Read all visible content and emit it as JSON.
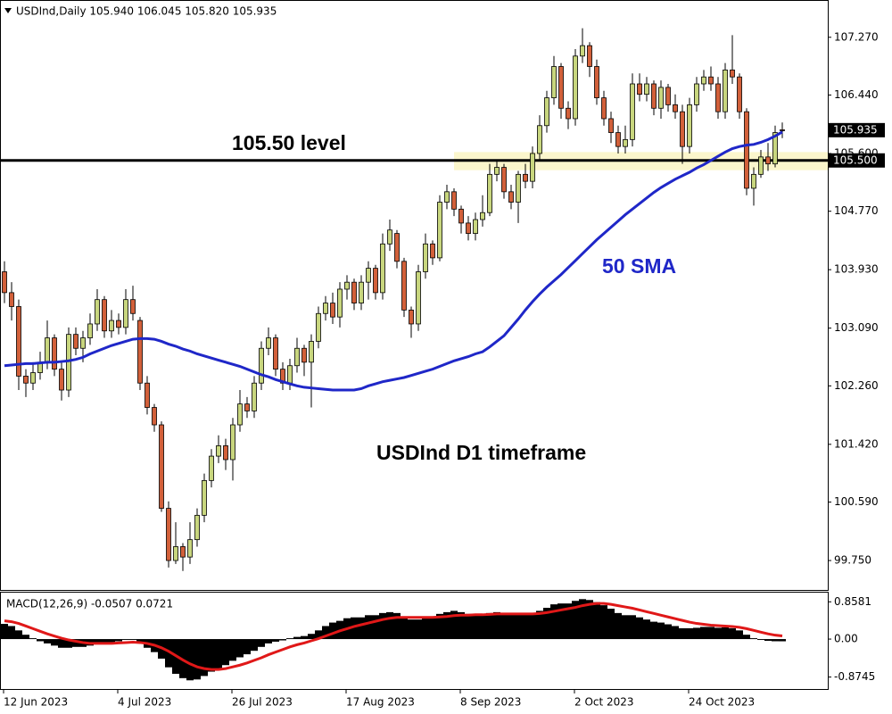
{
  "chart_data": [
    {
      "type": "candlestick",
      "header": "USDInd,Daily 105.940 106.045 105.820 105.935",
      "categories": [
        "12 Jun 2023",
        null,
        null,
        null,
        null,
        null,
        null,
        null,
        null,
        null,
        null,
        null,
        null,
        null,
        null,
        null,
        "4 Jul 2023",
        null,
        null,
        null,
        null,
        null,
        null,
        null,
        null,
        null,
        null,
        null,
        null,
        null,
        null,
        null,
        "26 Jul 2023",
        null,
        null,
        null,
        null,
        null,
        null,
        null,
        null,
        null,
        null,
        null,
        null,
        null,
        null,
        null,
        "17 Aug 2023",
        null,
        null,
        null,
        null,
        null,
        null,
        null,
        null,
        null,
        null,
        null,
        null,
        null,
        null,
        null,
        "8 Sep 2023",
        null,
        null,
        null,
        null,
        null,
        null,
        null,
        null,
        null,
        null,
        null,
        null,
        null,
        null,
        null,
        "2 Oct 2023",
        null,
        null,
        null,
        null,
        null,
        null,
        null,
        null,
        null,
        null,
        null,
        null,
        null,
        null,
        null,
        "24 Oct 2023",
        null,
        null,
        null,
        null,
        null,
        null,
        null,
        null,
        null,
        null,
        null,
        null,
        null
      ],
      "open": [
        103.9,
        103.6,
        103.4,
        102.4,
        102.3,
        102.45,
        102.6,
        102.95,
        102.5,
        102.2,
        103.0,
        102.8,
        102.95,
        103.15,
        103.5,
        103.05,
        103.2,
        103.1,
        103.5,
        103.2,
        102.3,
        101.95,
        101.7,
        100.5,
        99.75,
        99.95,
        99.8,
        100.05,
        100.4,
        100.9,
        101.25,
        101.4,
        101.2,
        101.7,
        102.0,
        101.9,
        102.3,
        102.8,
        102.95,
        102.5,
        102.3,
        102.55,
        102.8,
        102.6,
        102.9,
        103.3,
        103.45,
        103.25,
        103.65,
        103.75,
        103.45,
        103.75,
        103.95,
        103.6,
        104.3,
        104.45,
        104.05,
        103.35,
        103.15,
        103.9,
        104.3,
        104.1,
        104.9,
        105.05,
        104.8,
        104.6,
        104.45,
        104.65,
        104.75,
        105.3,
        105.4,
        105.05,
        104.9,
        105.3,
        105.2,
        105.6,
        106.0,
        106.4,
        106.85,
        106.25,
        106.1,
        107.0,
        107.15,
        106.85,
        106.4,
        106.1,
        105.9,
        105.7,
        105.8,
        106.6,
        106.45,
        106.6,
        106.25,
        106.55,
        106.3,
        106.2,
        105.7,
        106.3,
        106.6,
        106.7,
        106.6,
        106.2,
        106.8,
        106.7,
        106.2,
        105.1,
        105.3,
        105.55,
        105.45,
        105.94
      ],
      "high": [
        104.05,
        103.75,
        103.5,
        102.5,
        102.6,
        102.75,
        103.2,
        103.0,
        102.6,
        103.1,
        103.1,
        103.05,
        103.3,
        103.65,
        103.55,
        103.35,
        103.3,
        103.65,
        103.7,
        103.25,
        102.4,
        102.0,
        101.75,
        100.6,
        100.3,
        100.0,
        100.3,
        100.5,
        101.0,
        101.35,
        101.55,
        101.5,
        101.8,
        102.2,
        102.1,
        102.4,
        102.9,
        103.1,
        103.0,
        102.6,
        102.65,
        102.95,
        102.85,
        103.0,
        103.4,
        103.55,
        103.6,
        103.75,
        103.85,
        103.8,
        103.85,
        104.05,
        104.0,
        104.45,
        104.65,
        104.5,
        104.1,
        103.4,
        104.0,
        104.45,
        104.35,
        105.0,
        105.15,
        105.1,
        104.85,
        104.7,
        104.75,
        105.0,
        105.45,
        105.5,
        105.45,
        105.15,
        105.35,
        105.45,
        105.7,
        106.15,
        106.5,
        107.0,
        106.9,
        106.35,
        107.1,
        107.4,
        107.2,
        106.95,
        106.5,
        106.2,
        106.0,
        106.0,
        106.75,
        106.75,
        106.7,
        106.65,
        106.65,
        106.6,
        106.45,
        106.3,
        106.4,
        106.7,
        106.8,
        106.85,
        106.7,
        106.9,
        107.3,
        106.75,
        106.25,
        105.4,
        105.65,
        105.75,
        106.0,
        106.045
      ],
      "low": [
        103.45,
        103.2,
        102.2,
        102.1,
        102.2,
        102.35,
        102.5,
        102.4,
        102.05,
        102.1,
        102.7,
        102.6,
        102.85,
        103.05,
        102.95,
        102.95,
        103.0,
        103.0,
        103.2,
        102.2,
        101.85,
        101.6,
        100.45,
        99.65,
        99.7,
        99.6,
        99.7,
        99.95,
        100.3,
        100.8,
        101.15,
        101.05,
        100.9,
        101.6,
        101.8,
        101.8,
        102.2,
        102.7,
        102.4,
        102.2,
        102.2,
        102.45,
        102.4,
        101.95,
        102.8,
        103.2,
        103.15,
        103.1,
        103.5,
        103.35,
        103.35,
        103.5,
        103.5,
        103.5,
        104.2,
        103.95,
        103.25,
        102.95,
        103.05,
        103.8,
        104.0,
        104.05,
        104.8,
        104.7,
        104.45,
        104.35,
        104.35,
        104.55,
        104.7,
        105.2,
        104.95,
        104.8,
        104.6,
        105.1,
        105.1,
        105.5,
        105.9,
        106.3,
        106.1,
        105.95,
        106.0,
        106.9,
        106.7,
        106.3,
        106.0,
        105.75,
        105.6,
        105.6,
        105.7,
        106.35,
        106.35,
        106.15,
        106.1,
        106.2,
        106.1,
        105.45,
        105.6,
        106.2,
        106.5,
        106.5,
        106.1,
        106.1,
        106.6,
        106.1,
        105.0,
        104.85,
        105.25,
        105.35,
        105.4,
        105.82
      ],
      "close": [
        103.6,
        103.4,
        102.4,
        102.3,
        102.45,
        102.6,
        102.95,
        102.5,
        102.2,
        103.0,
        102.8,
        102.95,
        103.15,
        103.5,
        103.05,
        103.2,
        103.1,
        103.5,
        103.3,
        102.3,
        101.95,
        101.7,
        100.5,
        99.75,
        99.95,
        99.8,
        100.05,
        100.4,
        100.9,
        101.25,
        101.4,
        101.2,
        101.7,
        102.0,
        101.9,
        102.3,
        102.8,
        102.95,
        102.5,
        102.3,
        102.55,
        102.8,
        102.6,
        102.9,
        103.3,
        103.45,
        103.25,
        103.65,
        103.75,
        103.45,
        103.75,
        103.95,
        103.6,
        104.3,
        104.5,
        104.05,
        103.35,
        103.15,
        103.9,
        104.3,
        104.1,
        104.9,
        105.05,
        104.8,
        104.6,
        104.45,
        104.65,
        104.75,
        105.3,
        105.4,
        105.05,
        104.9,
        105.3,
        105.2,
        105.6,
        106.0,
        106.4,
        106.85,
        106.25,
        106.1,
        107.0,
        107.15,
        106.85,
        106.4,
        106.1,
        105.9,
        105.7,
        105.8,
        106.6,
        106.45,
        106.6,
        106.25,
        106.55,
        106.3,
        106.2,
        105.7,
        106.3,
        106.6,
        106.7,
        106.6,
        106.2,
        106.8,
        106.7,
        106.2,
        105.1,
        105.3,
        105.55,
        105.45,
        105.9,
        105.935
      ],
      "up_color": "#c8d67e",
      "down_color": "#d2603a",
      "sma": {
        "label": "50 SMA",
        "color": "#1f27c8",
        "values": [
          102.55,
          102.56,
          102.57,
          102.58,
          102.58,
          102.59,
          102.6,
          102.6,
          102.61,
          102.62,
          102.64,
          102.67,
          102.72,
          102.76,
          102.8,
          102.84,
          102.87,
          102.9,
          102.93,
          102.94,
          102.94,
          102.93,
          102.9,
          102.86,
          102.83,
          102.79,
          102.76,
          102.72,
          102.69,
          102.66,
          102.63,
          102.6,
          102.57,
          102.54,
          102.5,
          102.46,
          102.42,
          102.39,
          102.35,
          102.32,
          102.29,
          102.26,
          102.24,
          102.23,
          102.22,
          102.21,
          102.2,
          102.2,
          102.2,
          102.2,
          102.22,
          102.26,
          102.29,
          102.32,
          102.34,
          102.36,
          102.38,
          102.41,
          102.44,
          102.47,
          102.5,
          102.54,
          102.58,
          102.62,
          102.65,
          102.68,
          102.72,
          102.75,
          102.82,
          102.9,
          102.98,
          103.1,
          103.22,
          103.35,
          103.47,
          103.58,
          103.68,
          103.77,
          103.86,
          103.96,
          104.06,
          104.16,
          104.26,
          104.36,
          104.45,
          104.54,
          104.63,
          104.72,
          104.8,
          104.88,
          104.96,
          105.04,
          105.11,
          105.17,
          105.23,
          105.28,
          105.33,
          105.39,
          105.44,
          105.5,
          105.56,
          105.62,
          105.67,
          105.7,
          105.72,
          105.73,
          105.76,
          105.8,
          105.85,
          105.91
        ]
      },
      "level": {
        "label": "105.50 level",
        "value": 105.5
      },
      "zone": {
        "from": 105.36,
        "to": 105.62,
        "color": "#fbf6cc"
      },
      "annotation": "USDInd D1 timeframe",
      "ylim": [
        99.34,
        107.78
      ],
      "yticks": [
        {
          "value": 107.27,
          "label": "107.270"
        },
        {
          "value": 106.44,
          "label": "106.440"
        },
        {
          "value": 105.6,
          "label": "105.600"
        },
        {
          "value": 104.77,
          "label": "104.770"
        },
        {
          "value": 103.93,
          "label": "103.930"
        },
        {
          "value": 103.09,
          "label": "103.090"
        },
        {
          "value": 102.26,
          "label": "102.260"
        },
        {
          "value": 101.42,
          "label": "101.420"
        },
        {
          "value": 100.59,
          "label": "100.590"
        },
        {
          "value": 99.75,
          "label": "99.750"
        }
      ],
      "price_tags": [
        {
          "value": 105.935,
          "label": "105.935"
        },
        {
          "value": 105.5,
          "label": "105.500"
        }
      ]
    },
    {
      "type": "macd",
      "header": "MACD(12,26,9) -0.0507 0.0721",
      "histogram": [
        0.35,
        0.3,
        0.2,
        0.1,
        0.02,
        -0.05,
        -0.1,
        -0.15,
        -0.2,
        -0.2,
        -0.18,
        -0.18,
        -0.15,
        -0.1,
        -0.1,
        -0.08,
        -0.05,
        -0.02,
        -0.02,
        -0.1,
        -0.2,
        -0.3,
        -0.45,
        -0.65,
        -0.8,
        -0.9,
        -0.95,
        -0.93,
        -0.85,
        -0.75,
        -0.68,
        -0.6,
        -0.5,
        -0.42,
        -0.35,
        -0.27,
        -0.18,
        -0.1,
        -0.06,
        -0.03,
        0.02,
        0.05,
        0.07,
        0.12,
        0.2,
        0.3,
        0.38,
        0.42,
        0.48,
        0.5,
        0.5,
        0.55,
        0.55,
        0.6,
        0.62,
        0.6,
        0.5,
        0.45,
        0.45,
        0.5,
        0.5,
        0.58,
        0.62,
        0.65,
        0.62,
        0.58,
        0.56,
        0.55,
        0.6,
        0.62,
        0.6,
        0.57,
        0.58,
        0.57,
        0.6,
        0.65,
        0.72,
        0.8,
        0.82,
        0.82,
        0.88,
        0.92,
        0.9,
        0.85,
        0.78,
        0.7,
        0.6,
        0.55,
        0.55,
        0.5,
        0.45,
        0.4,
        0.38,
        0.34,
        0.3,
        0.25,
        0.25,
        0.26,
        0.28,
        0.28,
        0.26,
        0.27,
        0.25,
        0.2,
        0.1,
        0.02,
        -0.02,
        -0.04,
        -0.05,
        -0.0507
      ],
      "histogram_color": "#000000",
      "signal": {
        "color": "#e01818",
        "values": [
          0.42,
          0.4,
          0.36,
          0.3,
          0.24,
          0.18,
          0.12,
          0.07,
          0.02,
          -0.02,
          -0.05,
          -0.08,
          -0.1,
          -0.1,
          -0.1,
          -0.1,
          -0.09,
          -0.08,
          -0.07,
          -0.08,
          -0.1,
          -0.14,
          -0.2,
          -0.28,
          -0.38,
          -0.48,
          -0.57,
          -0.64,
          -0.68,
          -0.7,
          -0.7,
          -0.68,
          -0.64,
          -0.6,
          -0.55,
          -0.49,
          -0.43,
          -0.36,
          -0.3,
          -0.24,
          -0.18,
          -0.13,
          -0.09,
          -0.04,
          0.01,
          0.07,
          0.13,
          0.19,
          0.24,
          0.29,
          0.33,
          0.37,
          0.41,
          0.45,
          0.48,
          0.5,
          0.5,
          0.5,
          0.5,
          0.5,
          0.5,
          0.51,
          0.52,
          0.54,
          0.55,
          0.55,
          0.56,
          0.56,
          0.57,
          0.58,
          0.58,
          0.58,
          0.58,
          0.58,
          0.58,
          0.59,
          0.61,
          0.64,
          0.67,
          0.7,
          0.73,
          0.77,
          0.8,
          0.82,
          0.82,
          0.8,
          0.77,
          0.74,
          0.71,
          0.67,
          0.63,
          0.59,
          0.55,
          0.51,
          0.47,
          0.43,
          0.39,
          0.36,
          0.34,
          0.32,
          0.31,
          0.3,
          0.29,
          0.27,
          0.24,
          0.2,
          0.16,
          0.12,
          0.09,
          0.0721
        ]
      },
      "ylim": [
        -1.15,
        1.07
      ],
      "yticks": [
        0.8581,
        {
          "value": 0,
          "label": "0.00"
        },
        -0.8745
      ]
    }
  ]
}
